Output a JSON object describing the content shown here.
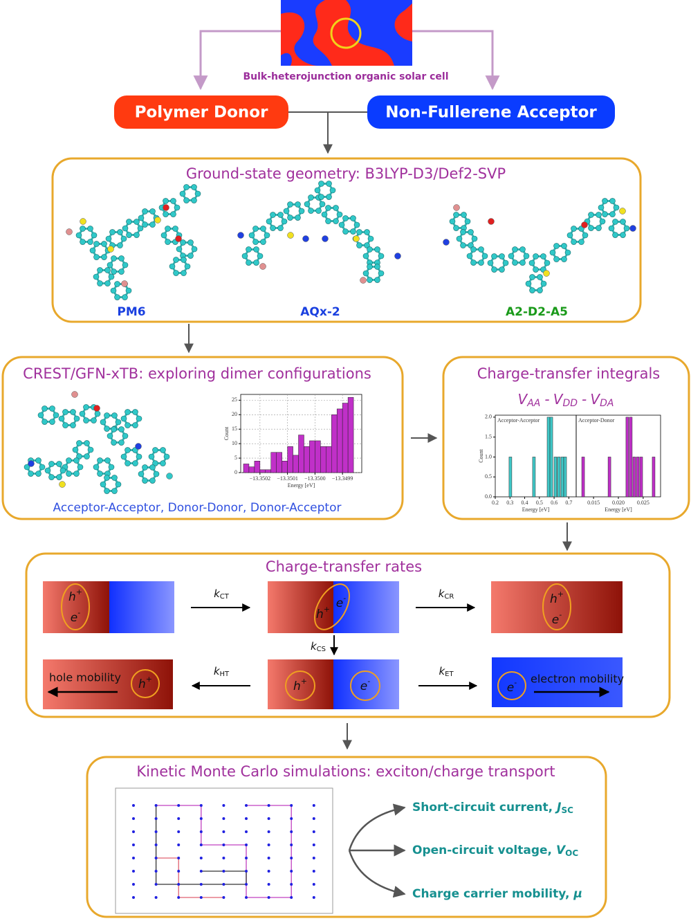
{
  "solar_cell": {
    "caption": "Bulk-heterojunction organic solar cell",
    "donor": "Polymer Donor",
    "acceptor": "Non-Fullerene Acceptor"
  },
  "geometry": {
    "title": "Ground-state geometry: B3LYP-D3/Def2-SVP",
    "molecules": [
      "PM6",
      "AQx-2",
      "A2-D2-A5"
    ]
  },
  "crest": {
    "title": "CREST/GFN-xTB: exploring dimer configurations",
    "caption": "Acceptor-Acceptor, Donor-Donor, Donor-Acceptor"
  },
  "integrals": {
    "title": "Charge-transfer integrals",
    "symbol": "V",
    "separator": "-",
    "subscripts": [
      "AA",
      "DD",
      "DA"
    ]
  },
  "rates": {
    "title": "Charge-transfer rates",
    "rate_symbol": "k",
    "rates": [
      "CT",
      "CR",
      "CS",
      "HT",
      "ET"
    ],
    "hole": {
      "symbol": "h",
      "charge": "+"
    },
    "electron": {
      "symbol": "e",
      "charge": "-"
    },
    "hole_mobility": "hole mobility",
    "electron_mobility": "electron mobility"
  },
  "kmc": {
    "title": "Kinetic Monte Carlo simulations: exciton/charge transport",
    "outputs": [
      {
        "label": "Short-circuit current,",
        "symbol": "J",
        "sub": "SC"
      },
      {
        "label": "Open-circuit voltage,",
        "symbol": "V",
        "sub": "OC"
      },
      {
        "label": "Charge carrier mobility,",
        "symbol": "μ"
      }
    ]
  },
  "chart_data": [
    {
      "type": "histogram",
      "xlabel": "Energy [eV]",
      "ylabel": "Count",
      "color": "#c030c8",
      "grid": true,
      "bins": [
        -13.35026,
        -13.35024,
        -13.35022,
        -13.3502,
        -13.35018,
        -13.35016,
        -13.35014,
        -13.35012,
        -13.3501,
        -13.35008,
        -13.35006,
        -13.35004,
        -13.35002,
        -13.35,
        -13.34998,
        -13.34996,
        -13.34994,
        -13.34992,
        -13.3499,
        -13.34988,
        -13.34986
      ],
      "values": [
        3,
        2,
        4,
        1,
        1,
        7,
        7,
        4,
        9,
        6,
        13,
        9,
        11,
        11,
        9,
        9,
        20,
        22,
        24,
        26
      ],
      "xlim": [
        -13.35027,
        -13.34983
      ],
      "ylim": [
        0,
        27
      ],
      "xticks": [
        {
          "value": -13.3502,
          "label": "−13.3502"
        },
        {
          "value": -13.3501,
          "label": "−13.3501"
        },
        {
          "value": -13.35,
          "label": "−13.3500"
        },
        {
          "value": -13.3499,
          "label": "−13.3499"
        }
      ],
      "yticks": [
        0,
        5,
        10,
        15,
        20,
        25
      ]
    },
    {
      "type": "bar",
      "title": "Acceptor-Acceptor",
      "xlabel": "Energy [eV]",
      "ylabel": "Count",
      "color": "#40c8c8",
      "x": [
        0.303,
        0.463,
        0.562,
        0.581,
        0.609,
        0.632,
        0.656,
        0.675
      ],
      "values": [
        1,
        1,
        2,
        2,
        1,
        1,
        1,
        1
      ],
      "xlim": [
        0.2,
        0.75
      ],
      "ylim": [
        0,
        2.05
      ],
      "xticks": [
        0.2,
        0.3,
        0.4,
        0.5,
        0.6,
        0.7
      ],
      "yticks": [
        {
          "value": 0,
          "label": "0.0"
        },
        {
          "value": 0.5,
          "label": "0.5"
        },
        {
          "value": 1,
          "label": "1.0"
        },
        {
          "value": 1.5,
          "label": "1.5"
        },
        {
          "value": 2,
          "label": "2.0"
        }
      ]
    },
    {
      "type": "bar",
      "title": "Acceptor-Donor",
      "xlabel": "Energy [eV]",
      "color": "#c030c8",
      "x": [
        0.0129,
        0.0182,
        0.0218,
        0.0225,
        0.0232,
        0.0239,
        0.0246,
        0.0271
      ],
      "values": [
        1,
        1,
        2,
        2,
        1,
        1,
        1,
        1
      ],
      "xlim": [
        0.0115,
        0.0285
      ],
      "ylim": [
        0,
        2.05
      ],
      "xticks": [
        0.015,
        {
          "value": 0.02,
          "label": "0.020"
        },
        0.025
      ]
    }
  ]
}
